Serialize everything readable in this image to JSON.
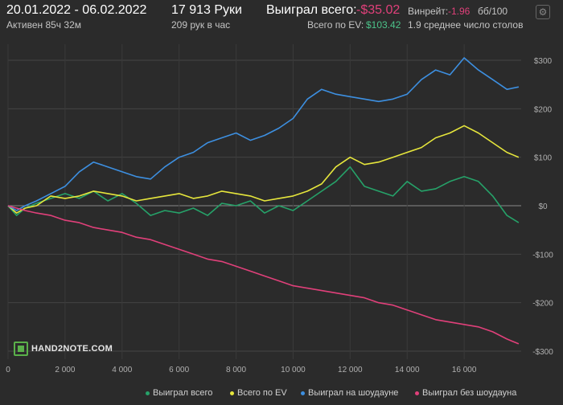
{
  "header": {
    "date_range": "20.01.2022 - 06.02.2022",
    "active_time": "Активен 85ч 32м",
    "hands": "17 913 Руки",
    "hands_per_hour": "209 рук в час",
    "won_total_label": "Выиграл всего:",
    "won_total_value": "-$35.02",
    "ev_label": "Всего по EV:",
    "ev_value": "$103.42",
    "winrate_label": "Винрейт:",
    "winrate_value": "-1.96",
    "winrate_scale": "бб/100",
    "avg_tables": "1.9 среднее число столов"
  },
  "logo": "HAND2NOTE.COM",
  "colors": {
    "background": "#2b2b2b",
    "won_total": "#26a269",
    "ev": "#e6e63c",
    "showdown": "#3d8fe0",
    "non_showdown": "#e0407a",
    "negative_value": "#e0407a",
    "positive_value": "#4cc38a"
  },
  "chart_data": {
    "type": "line",
    "xlim": [
      0,
      18000
    ],
    "ylim": [
      -300,
      300
    ],
    "x_ticks": [
      0,
      2000,
      4000,
      6000,
      8000,
      10000,
      12000,
      14000,
      16000
    ],
    "x_tick_labels": [
      "0",
      "2 000",
      "4 000",
      "6 000",
      "8 000",
      "10 000",
      "12 000",
      "14 000",
      "16 000"
    ],
    "y_ticks": [
      300,
      200,
      100,
      0,
      -100,
      -200,
      -300
    ],
    "y_tick_labels": [
      "$300",
      "$200",
      "$100",
      "$0",
      "-$100",
      "-$200",
      "-$300"
    ],
    "grid": true,
    "legend_position": "bottom",
    "series": [
      {
        "name": "Выиграл всего",
        "color": "#26a269",
        "x": [
          0,
          300,
          600,
          1000,
          1500,
          2000,
          2500,
          3000,
          3500,
          4000,
          4500,
          5000,
          5500,
          6000,
          6500,
          7000,
          7500,
          8000,
          8500,
          9000,
          9500,
          10000,
          10500,
          11000,
          11500,
          12000,
          12500,
          13000,
          13500,
          14000,
          14500,
          15000,
          15500,
          16000,
          16500,
          17000,
          17500,
          17913
        ],
        "y": [
          0,
          -20,
          -5,
          5,
          15,
          25,
          15,
          30,
          10,
          25,
          5,
          -20,
          -10,
          -15,
          -5,
          -20,
          5,
          0,
          10,
          -15,
          0,
          -10,
          10,
          30,
          50,
          80,
          40,
          30,
          20,
          50,
          30,
          35,
          50,
          60,
          50,
          20,
          -20,
          -35
        ]
      },
      {
        "name": "Всего по EV",
        "color": "#e6e63c",
        "x": [
          0,
          300,
          600,
          1000,
          1500,
          2000,
          2500,
          3000,
          3500,
          4000,
          4500,
          5000,
          5500,
          6000,
          6500,
          7000,
          7500,
          8000,
          8500,
          9000,
          9500,
          10000,
          10500,
          11000,
          11500,
          12000,
          12500,
          13000,
          13500,
          14000,
          14500,
          15000,
          15500,
          16000,
          16500,
          17000,
          17500,
          17913
        ],
        "y": [
          0,
          -15,
          -5,
          0,
          20,
          15,
          20,
          30,
          25,
          20,
          10,
          15,
          20,
          25,
          15,
          20,
          30,
          25,
          20,
          10,
          15,
          20,
          30,
          45,
          80,
          100,
          85,
          90,
          100,
          110,
          120,
          140,
          150,
          165,
          150,
          130,
          110,
          100
        ]
      },
      {
        "name": "Выиграл на шоудауне",
        "color": "#3d8fe0",
        "x": [
          0,
          300,
          600,
          1000,
          1500,
          2000,
          2500,
          3000,
          3500,
          4000,
          4500,
          5000,
          5500,
          6000,
          6500,
          7000,
          7500,
          8000,
          8500,
          9000,
          9500,
          10000,
          10500,
          11000,
          11500,
          12000,
          12500,
          13000,
          13500,
          14000,
          14500,
          15000,
          15500,
          16000,
          16500,
          17000,
          17500,
          17913
        ],
        "y": [
          0,
          -10,
          0,
          10,
          25,
          40,
          70,
          90,
          80,
          70,
          60,
          55,
          80,
          100,
          110,
          130,
          140,
          150,
          135,
          145,
          160,
          180,
          220,
          240,
          230,
          225,
          220,
          215,
          220,
          230,
          260,
          280,
          270,
          305,
          280,
          260,
          240,
          245
        ]
      },
      {
        "name": "Выиграл без шоудауна",
        "color": "#e0407a",
        "x": [
          0,
          300,
          600,
          1000,
          1500,
          2000,
          2500,
          3000,
          3500,
          4000,
          4500,
          5000,
          5500,
          6000,
          6500,
          7000,
          7500,
          8000,
          8500,
          9000,
          9500,
          10000,
          10500,
          11000,
          11500,
          12000,
          12500,
          13000,
          13500,
          14000,
          14500,
          15000,
          15500,
          16000,
          16500,
          17000,
          17500,
          17913
        ],
        "y": [
          0,
          -5,
          -10,
          -15,
          -20,
          -30,
          -35,
          -45,
          -50,
          -55,
          -65,
          -70,
          -80,
          -90,
          -100,
          -110,
          -115,
          -125,
          -135,
          -145,
          -155,
          -165,
          -170,
          -175,
          -180,
          -185,
          -190,
          -200,
          -205,
          -215,
          -225,
          -235,
          -240,
          -245,
          -250,
          -260,
          -275,
          -285
        ]
      }
    ]
  }
}
